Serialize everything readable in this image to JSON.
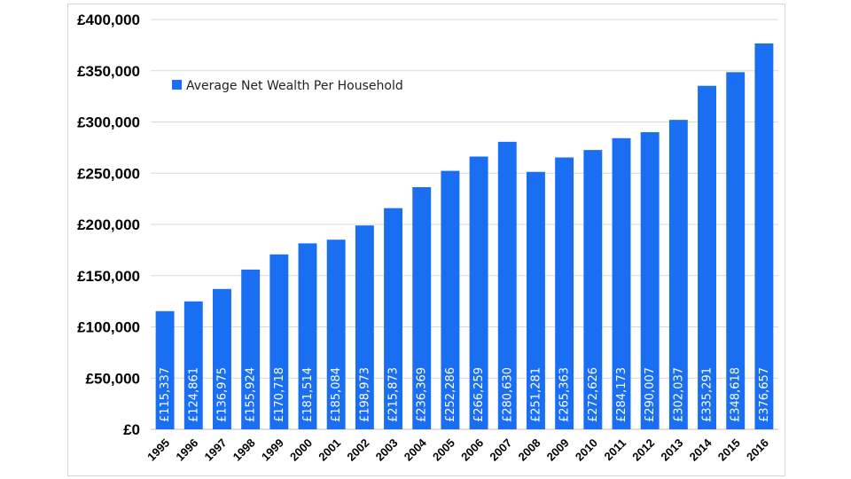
{
  "chart_data": {
    "type": "bar",
    "categories": [
      "1995",
      "1996",
      "1997",
      "1998",
      "1999",
      "2000",
      "2001",
      "2002",
      "2003",
      "2004",
      "2005",
      "2006",
      "2007",
      "2008",
      "2009",
      "2010",
      "2011",
      "2012",
      "2013",
      "2014",
      "2015",
      "2016"
    ],
    "series": [
      {
        "name": "Average Net Wealth Per Household",
        "values": [
          115337,
          124861,
          136975,
          155924,
          170718,
          181514,
          185084,
          198973,
          215873,
          236369,
          252286,
          266259,
          280630,
          251281,
          265363,
          272626,
          284173,
          290007,
          302037,
          335291,
          348618,
          376657
        ],
        "labels": [
          "£115,337",
          "£124,861",
          "£136,975",
          "£155,924",
          "£170,718",
          "£181,514",
          "£185,084",
          "£198,973",
          "£215,873",
          "£236,369",
          "£252,286",
          "£266,259",
          "£280,630",
          "£251,281",
          "£265,363",
          "£272,626",
          "£284,173",
          "£290,007",
          "£302,037",
          "£335,291",
          "£348,618",
          "£376,657"
        ],
        "color": "#1a6ef2"
      }
    ],
    "ylim": [
      0,
      400000
    ],
    "yticks": [
      0,
      50000,
      100000,
      150000,
      200000,
      250000,
      300000,
      350000,
      400000
    ],
    "ytick_labels": [
      "£0",
      "£50,000",
      "£100,000",
      "£150,000",
      "£200,000",
      "£250,000",
      "£300,000",
      "£350,000",
      "£400,000"
    ],
    "grid": true,
    "legend_position": "top-left",
    "title": "",
    "xlabel": "",
    "ylabel": ""
  }
}
